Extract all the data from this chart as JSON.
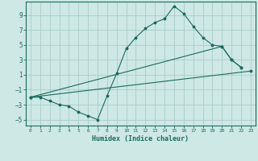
{
  "xlabel": "Humidex (Indice chaleur)",
  "ylabel": "",
  "bg_color": "#cde8e5",
  "grid_color": "#a8cdc9",
  "line_color": "#1a6b5e",
  "xlim": [
    -0.5,
    23.5
  ],
  "ylim": [
    -5.8,
    10.8
  ],
  "xticks": [
    0,
    1,
    2,
    3,
    4,
    5,
    6,
    7,
    8,
    9,
    10,
    11,
    12,
    13,
    14,
    15,
    16,
    17,
    18,
    19,
    20,
    21,
    22,
    23
  ],
  "yticks": [
    -5,
    -3,
    -1,
    1,
    3,
    5,
    7,
    9
  ],
  "line1_x": [
    0,
    1,
    2,
    3,
    4,
    5,
    6,
    7,
    8,
    9,
    10,
    11,
    12,
    13,
    14,
    15,
    16,
    17,
    18,
    19,
    20,
    21,
    22
  ],
  "line1_y": [
    -2,
    -2,
    -2.5,
    -3,
    -3.2,
    -4,
    -4.5,
    -5,
    -1.8,
    1.2,
    4.5,
    6,
    7.2,
    8,
    8.5,
    10.2,
    9.2,
    7.5,
    6,
    5,
    4.8,
    3,
    2
  ],
  "line2_x": [
    0,
    20,
    21,
    22
  ],
  "line2_y": [
    -2,
    4.8,
    3,
    2
  ],
  "line3_x": [
    0,
    23
  ],
  "line3_y": [
    -2,
    1.5
  ]
}
